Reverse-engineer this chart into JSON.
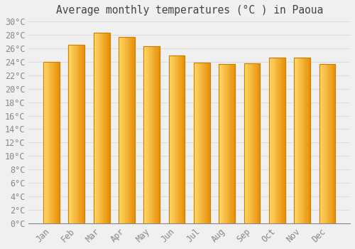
{
  "title": "Average monthly temperatures (°C ) in Paoua",
  "months": [
    "Jan",
    "Feb",
    "Mar",
    "Apr",
    "May",
    "Jun",
    "Jul",
    "Aug",
    "Sep",
    "Oct",
    "Nov",
    "Dec"
  ],
  "values": [
    24.0,
    26.5,
    28.3,
    27.7,
    26.3,
    24.9,
    23.9,
    23.7,
    23.8,
    24.6,
    24.6,
    23.7
  ],
  "bar_color_left": "#FFD966",
  "bar_color_right": "#E8900A",
  "bar_edge_color": "#CC8000",
  "ylim": [
    0,
    30
  ],
  "background_color": "#F0F0F0",
  "grid_color": "#DDDDDD",
  "tick_label_color": "#888888",
  "title_color": "#444444",
  "title_fontsize": 10.5,
  "tick_fontsize": 8.5,
  "bar_width": 0.65
}
